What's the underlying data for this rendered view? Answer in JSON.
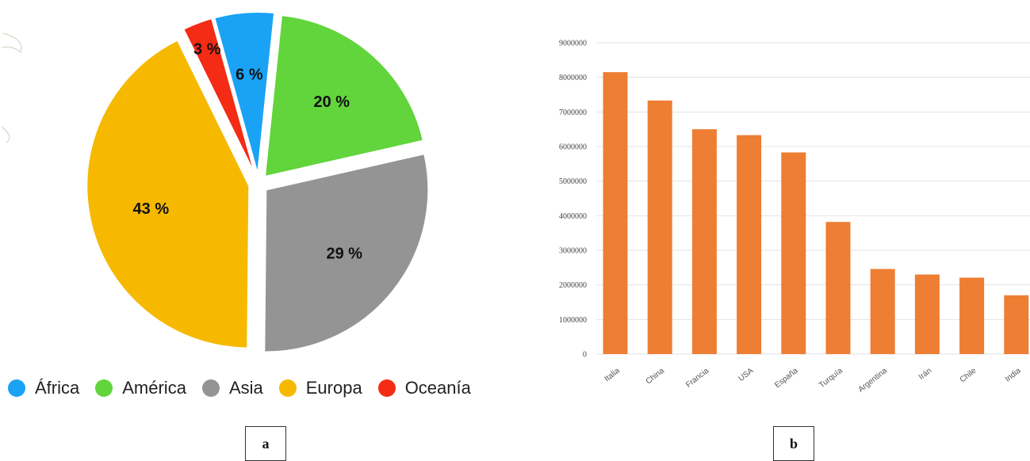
{
  "colors": {
    "africa": "#1aa3f5",
    "america": "#62d43c",
    "asia": "#949494",
    "europa": "#f6b900",
    "oceania": "#f42b15",
    "bar": "#ee7e33",
    "grid": "#e3e3e3"
  },
  "panels": {
    "a": "a",
    "b": "b"
  },
  "chart_data": [
    {
      "type": "pie",
      "slices": [
        {
          "name": "África",
          "value": 6,
          "label": "6 %",
          "color": "#1aa3f5"
        },
        {
          "name": "América",
          "value": 20,
          "label": "20 %",
          "color": "#62d43c"
        },
        {
          "name": "Asia",
          "value": 29,
          "label": "29 %",
          "color": "#949494"
        },
        {
          "name": "Europa",
          "value": 43,
          "label": "43 %",
          "color": "#f6b900"
        },
        {
          "name": "Oceanía",
          "value": 3,
          "label": "3 %",
          "color": "#f42b15"
        }
      ],
      "legend": {
        "position": "bottom",
        "items": [
          {
            "label": "África",
            "color": "#1aa3f5"
          },
          {
            "label": "América",
            "color": "#62d43c"
          },
          {
            "label": "Asia",
            "color": "#949494"
          },
          {
            "label": "Europa",
            "color": "#f6b900"
          },
          {
            "label": "Oceanía",
            "color": "#f42b15"
          }
        ]
      }
    },
    {
      "type": "bar",
      "categories": [
        "Italia",
        "China",
        "Francia",
        "USA",
        "España",
        "Turquía",
        "Argentina",
        "Irán",
        "Chile",
        "India"
      ],
      "values": [
        8150000,
        7330000,
        6500000,
        6330000,
        5830000,
        3820000,
        2460000,
        2300000,
        2210000,
        1700000
      ],
      "ylim": [
        0,
        9000000
      ],
      "yticks": [
        "0",
        "1000000",
        "2000000",
        "3000000",
        "4000000",
        "5000000",
        "6000000",
        "7000000",
        "8000000",
        "9000000"
      ],
      "grid": true,
      "color": "#ee7e33"
    }
  ]
}
